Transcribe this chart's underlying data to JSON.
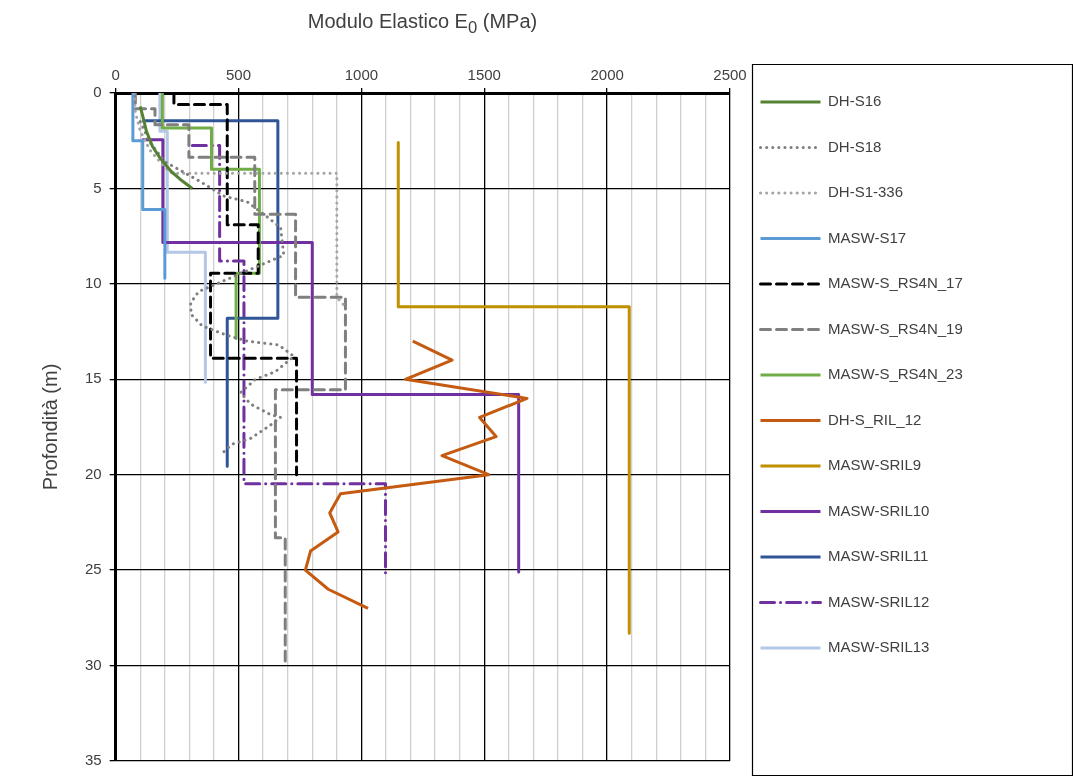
{
  "chart_data": {
    "type": "line",
    "xlabel": "Modulo Elastico E$_{0}$ (MPa)",
    "ylabel": "Profondità (m)",
    "xlim": [
      0,
      2500
    ],
    "xticks": [
      0,
      {
        "value": 100,
        "label": null
      },
      {
        "value": 200,
        "label": null
      },
      {
        "value": 300,
        "label": null
      },
      {
        "value": 400,
        "label": null
      },
      500,
      {
        "value": 600,
        "label": null
      },
      {
        "value": 700,
        "label": null
      },
      {
        "value": 800,
        "label": null
      },
      {
        "value": 900,
        "label": null
      },
      1000,
      {
        "value": 1100,
        "label": null
      },
      {
        "value": 1200,
        "label": null
      },
      {
        "value": 1300,
        "label": null
      },
      {
        "value": 1400,
        "label": null
      },
      1500,
      {
        "value": 1600,
        "label": null
      },
      {
        "value": 1700,
        "label": null
      },
      {
        "value": 1800,
        "label": null
      },
      {
        "value": 1900,
        "label": null
      },
      2000,
      {
        "value": 2100,
        "label": null
      },
      {
        "value": 2200,
        "label": null
      },
      {
        "value": 2300,
        "label": null
      },
      {
        "value": 2400,
        "label": null
      },
      2500
    ],
    "ylim": [
      35,
      0
    ],
    "yticks": [
      0,
      5,
      10,
      15,
      20,
      25,
      30,
      35
    ],
    "grid": true,
    "legend": "right",
    "marker": "none",
    "series": [
      {
        "name": "DH-S16",
        "color": "#548235",
        "line_style": "solid",
        "x": [
          100,
          110,
          125,
          150,
          180,
          225,
          270,
          312
        ],
        "values": [
          0.7,
          1.2,
          2,
          2.8,
          3.4,
          4.1,
          4.6,
          5.0
        ]
      },
      {
        "name": "DH-S18",
        "color": "#7f7f7f",
        "line_style": "dotted",
        "x": [
          100,
          140,
          200,
          339,
          440,
          535,
          617,
          671,
          684,
          338,
          305,
          307,
          352,
          453,
          535,
          663,
          725,
          650,
          569,
          508,
          549,
          630,
          671,
          630,
          549,
          474,
          440
        ],
        "values": [
          1.5,
          2.6,
          3.6,
          4.6,
          5.4,
          5.7,
          6.5,
          7.05,
          8.5,
          10.4,
          11.0,
          11.6,
          12.2,
          12.7,
          13.0,
          13.2,
          13.8,
          14.6,
          15.0,
          15.7,
          16.3,
          16.85,
          17.0,
          17.4,
          18.1,
          18.4,
          18.8
        ]
      },
      {
        "name": "DH-S1-336",
        "color": "#a5a5a5",
        "line_style": "dotted",
        "x": [
          75,
          80,
          100,
          140,
          200,
          230,
          900,
          900,
          935
        ],
        "values": [
          0,
          1,
          2,
          3,
          3.9,
          4.2,
          4.2,
          10.7,
          11.2
        ]
      },
      {
        "name": "MASW-S17",
        "color": "#5b9bd5",
        "line_style": "solid",
        "x": [
          70,
          70,
          110,
          110,
          200,
          200
        ],
        "values": [
          0,
          2.5,
          2.5,
          6.1,
          6.1,
          9.7
        ]
      },
      {
        "name": "MASW-S_RS4N_17",
        "color": "#000000",
        "line_style": "dashed",
        "x": [
          237,
          237,
          454,
          454,
          580,
          580,
          386,
          386,
          736,
          736
        ],
        "values": [
          0,
          0.6,
          0.6,
          6.9,
          6.9,
          9.45,
          9.45,
          13.9,
          13.9,
          20.0
        ]
      },
      {
        "name": "MASW-S_RS4N_19",
        "color": "#7f7f7f",
        "line_style": "dashed",
        "x": [
          80,
          80,
          160,
          160,
          298,
          298,
          566,
          566,
          732,
          732,
          935,
          935,
          650,
          650,
          690,
          690
        ],
        "values": [
          0,
          0.83,
          0.83,
          1.67,
          1.67,
          3.37,
          3.37,
          6.35,
          6.35,
          10.7,
          10.7,
          15.55,
          15.55,
          23.3,
          23.3,
          30
        ]
      },
      {
        "name": "MASW-S_RS4N_23",
        "color": "#70ad47",
        "line_style": "solid",
        "x": [
          190,
          190,
          390,
          390,
          585,
          585,
          490,
          490
        ],
        "values": [
          0,
          1.84,
          1.84,
          4.0,
          4.0,
          9.45,
          9.45,
          12.86
        ]
      },
      {
        "name": "DH-S_RIL_12",
        "color": "#c55a11",
        "line_style": "solid",
        "x": [
          1209,
          1369,
          1179,
          1674,
          1481,
          1548,
          1328,
          1518,
          915,
          871,
          905,
          793,
          772,
          865,
          1027
        ],
        "values": [
          13,
          14,
          15,
          16,
          17,
          18,
          19,
          20,
          21,
          22,
          23,
          24,
          25,
          26,
          27
        ]
      },
      {
        "name": "MASW-SRIL9",
        "color": "#bf9000",
        "line_style": "solid",
        "x": [
          1150,
          1150,
          2090,
          2090
        ],
        "values": [
          2.6,
          11.2,
          11.2,
          28.3
        ]
      },
      {
        "name": "MASW-SRIL10",
        "color": "#7030a0",
        "line_style": "solid",
        "x": [
          108,
          192,
          192,
          800,
          800,
          1640,
          1640
        ],
        "values": [
          2.45,
          2.45,
          7.83,
          7.83,
          15.8,
          15.8,
          25.1
        ]
      },
      {
        "name": "MASW-SRIL11",
        "color": "#2f5597",
        "line_style": "solid",
        "x": [
          108,
          660,
          660,
          454,
          454
        ],
        "values": [
          1.46,
          1.46,
          11.8,
          11.8,
          19.55
        ]
      },
      {
        "name": "MASW-SRIL12",
        "color": "#7030a0",
        "line_style": "dashdot",
        "x": [
          312,
          423,
          423,
          522,
          522,
          1098,
          1098
        ],
        "values": [
          2.75,
          2.75,
          8.8,
          8.8,
          20.47,
          20.47,
          25.45
        ]
      },
      {
        "name": "MASW-SRIL13",
        "color": "#b4c7e7",
        "line_style": "solid",
        "x": [
          180,
          180,
          210,
          210,
          365,
          365
        ],
        "values": [
          0,
          2,
          2,
          8.35,
          8.35,
          15.15
        ]
      }
    ]
  }
}
